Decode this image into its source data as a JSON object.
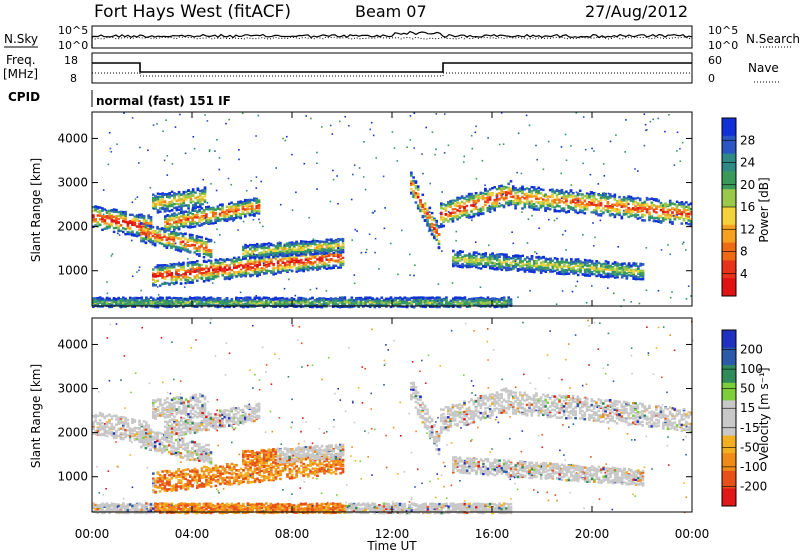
{
  "header": {
    "station": "Fort Hays West (fitACF)",
    "beam": "Beam 07",
    "date": "27/Aug/2012"
  },
  "noise_panel": {
    "left_label": "N.Sky",
    "right_label": "N.Search",
    "left_ticks": [
      "10^5",
      "10^0"
    ],
    "right_ticks": [
      "10^5",
      "10^0"
    ]
  },
  "freq_panel": {
    "left_label_line1": "Freq.",
    "left_label_line2": "[MHz]",
    "right_label": "Nave",
    "left_ticks": [
      "18",
      "8"
    ],
    "right_ticks": [
      "60",
      "0"
    ]
  },
  "cpid_panel": {
    "label": "CPID",
    "text": "normal (fast) 151 IF"
  },
  "chart_data": [
    {
      "type": "heatmap",
      "name": "power",
      "ylabel": "Slant Range [km]",
      "yticks": [
        "4000",
        "3000",
        "2000",
        "1000"
      ],
      "colorbar_label": "Power [dB]",
      "colorbar_ticks": [
        "28",
        "24",
        "20",
        "16",
        "12",
        "8",
        "4"
      ],
      "colors": [
        "#1030d8",
        "#2a56c4",
        "#2f8a86",
        "#3a9a5a",
        "#9ac84a",
        "#f4d23a",
        "#f5a020",
        "#ef6a14",
        "#e8321a",
        "#e01212"
      ],
      "ylim": [
        200,
        4600
      ]
    },
    {
      "type": "heatmap",
      "name": "velocity",
      "ylabel": "Slant Range [km]",
      "yticks": [
        "4000",
        "3000",
        "2000",
        "1000"
      ],
      "colorbar_label": "Velocity [m s⁻¹]",
      "colorbar_ticks": [
        "200",
        "100",
        "50",
        "15",
        "-15",
        "-50",
        "-100",
        "-200"
      ],
      "colors": [
        "#2030c0",
        "#2a5aa8",
        "#2f8c5a",
        "#7ccf3a",
        "#c8c8c8",
        "#c8c8c8",
        "#f2b020",
        "#f08a18",
        "#e8501a",
        "#e01818"
      ],
      "ylim": [
        200,
        4600
      ]
    }
  ],
  "x_axis": {
    "label": "Time UT",
    "ticks": [
      "00:00",
      "04:00",
      "08:00",
      "12:00",
      "16:00",
      "20:00",
      "00:00"
    ]
  }
}
